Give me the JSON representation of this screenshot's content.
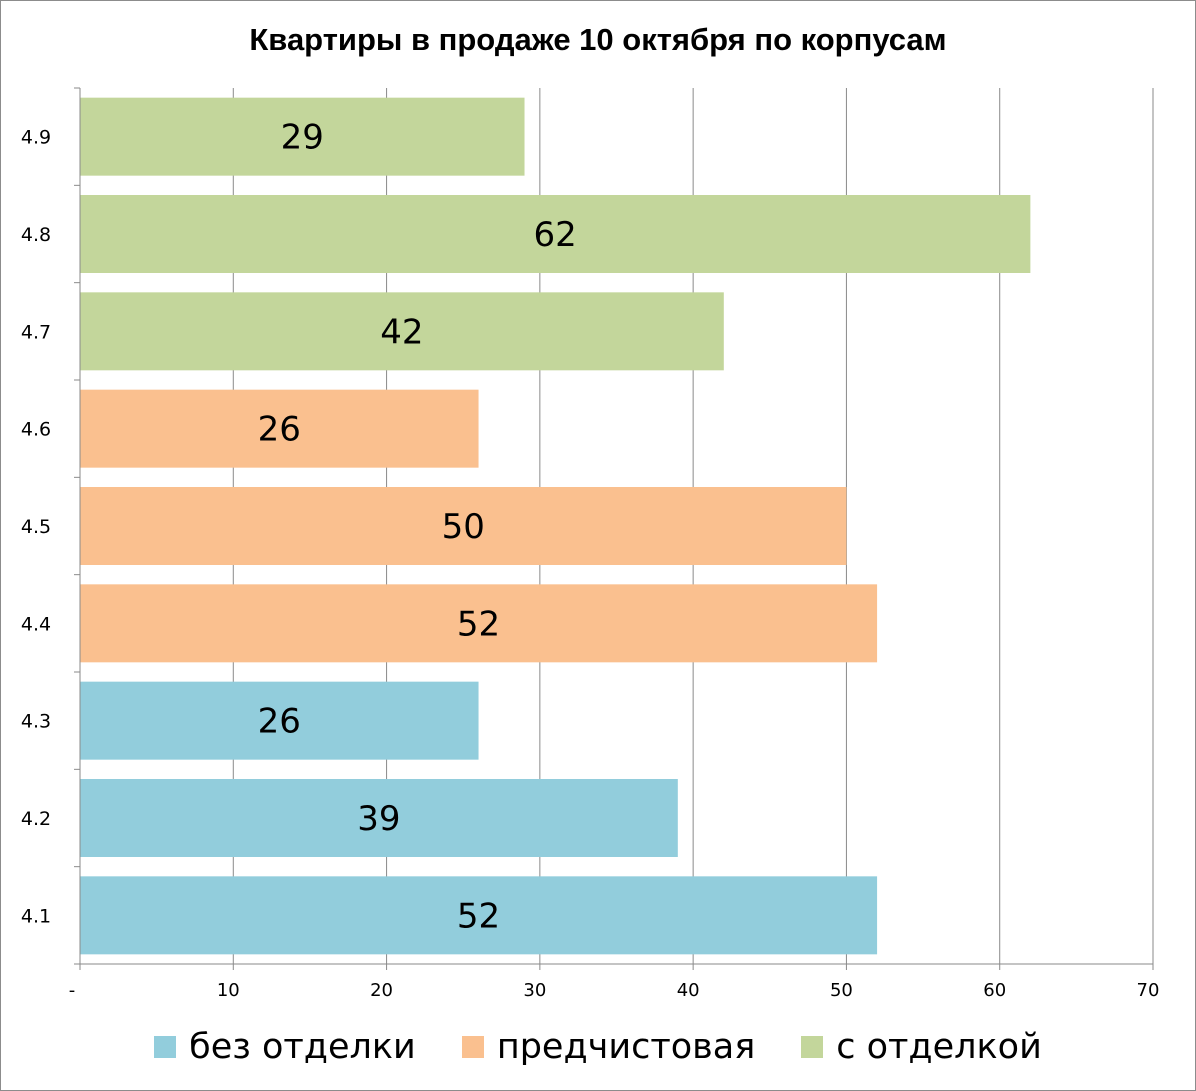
{
  "chart_data": {
    "type": "bar",
    "orientation": "horizontal",
    "title": "Квартиры в продаже 10 октября по корпусам",
    "categories": [
      "4.1",
      "4.2",
      "4.3",
      "4.4",
      "4.5",
      "4.6",
      "4.7",
      "4.8",
      "4.9"
    ],
    "values": [
      52,
      39,
      26,
      52,
      50,
      26,
      42,
      62,
      29
    ],
    "category_series": [
      "без отделки",
      "без отделки",
      "без отделки",
      "предчистовая",
      "предчистовая",
      "предчистовая",
      "с отделкой",
      "с отделкой",
      "с отделкой"
    ],
    "series": [
      {
        "name": "без отделки",
        "color": "#92CDDC"
      },
      {
        "name": "предчистовая",
        "color": "#FAC08F"
      },
      {
        "name": "с отделкой",
        "color": "#C3D69B"
      }
    ],
    "x_ticks": [
      "-",
      "10",
      "20",
      "30",
      "40",
      "50",
      "60",
      "70"
    ],
    "xlim": [
      0,
      70
    ],
    "grid": "vertical",
    "legend": "bottom",
    "data_labels": true
  }
}
